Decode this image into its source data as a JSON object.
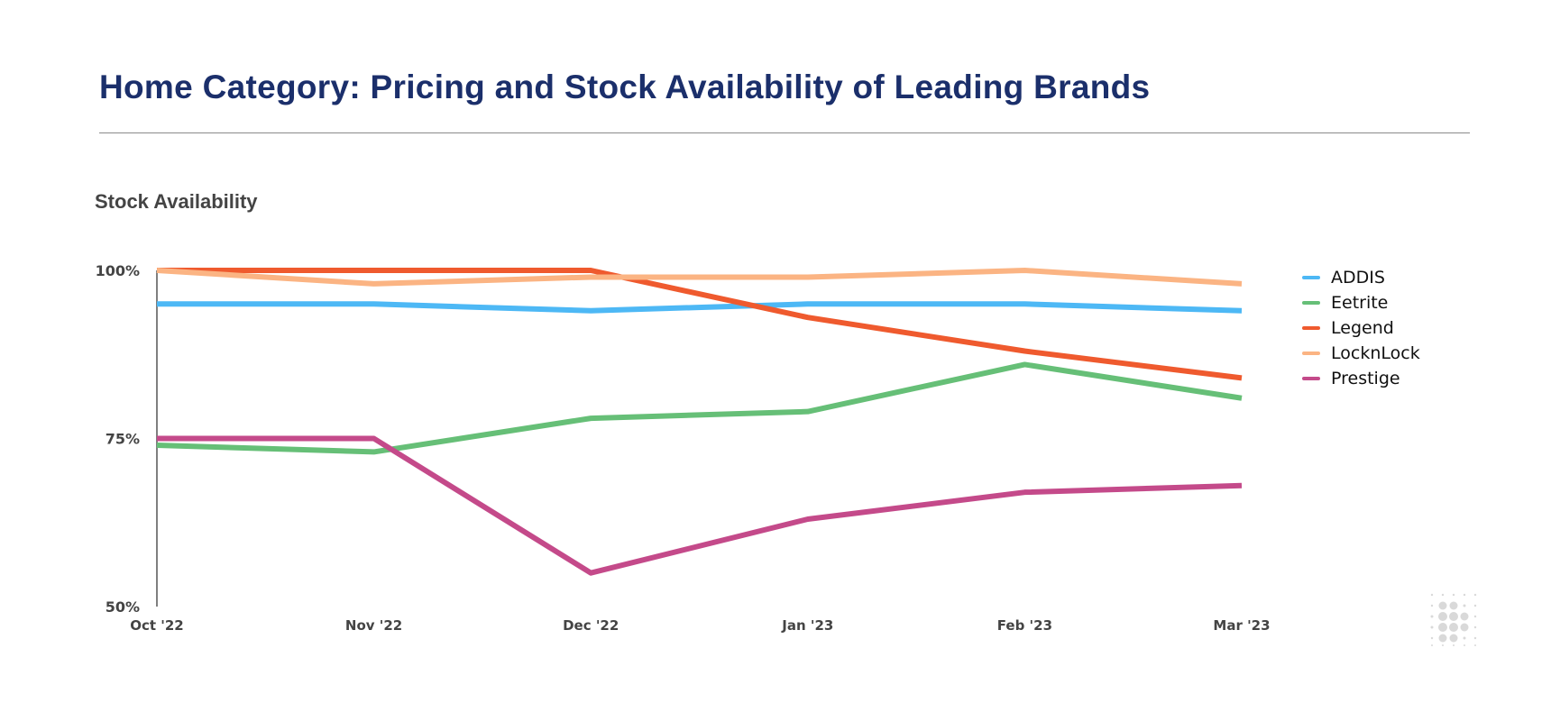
{
  "header": {
    "title": "Home Category: Pricing and Stock Availability of Leading Brands"
  },
  "chart_data": {
    "type": "line",
    "title": "Stock Availability",
    "xlabel": "",
    "ylabel": "",
    "categories": [
      "Oct '22",
      "Nov '22",
      "Dec '22",
      "Jan '23",
      "Feb '23",
      "Mar '23"
    ],
    "ylim": [
      50,
      100
    ],
    "yticks": [
      50,
      75,
      100
    ],
    "ytick_labels": [
      "50%",
      "75%",
      "100%"
    ],
    "grid": false,
    "legend_position": "right",
    "series": [
      {
        "name": "ADDIS",
        "color": "#4db8f5",
        "values": [
          95,
          95,
          94,
          95,
          95,
          94
        ]
      },
      {
        "name": "Eetrite",
        "color": "#66bf77",
        "values": [
          74,
          73,
          78,
          79,
          86,
          81
        ]
      },
      {
        "name": "Legend",
        "color": "#ef5a2e",
        "values": [
          100,
          100,
          100,
          93,
          88,
          84
        ]
      },
      {
        "name": "LocknLock",
        "color": "#fbb483",
        "values": [
          100,
          98,
          99,
          99,
          100,
          98
        ]
      },
      {
        "name": "Prestige",
        "color": "#c44a8a",
        "values": [
          75,
          75,
          55,
          63,
          67,
          68
        ]
      }
    ]
  }
}
